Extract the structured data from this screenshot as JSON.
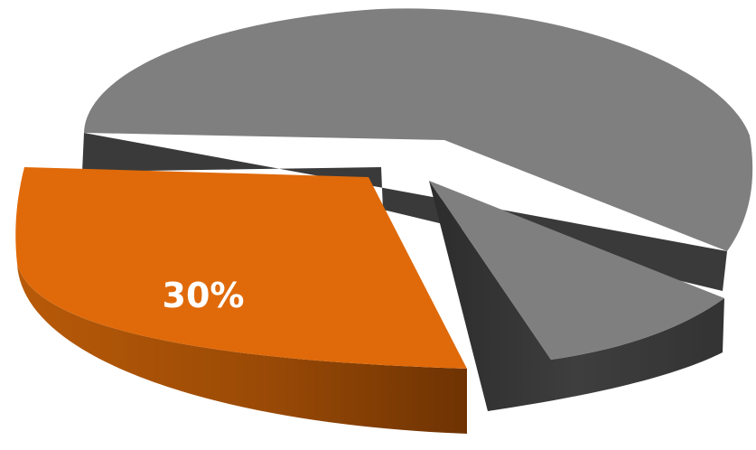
{
  "chart_data": {
    "type": "pie",
    "style": "3d-exploded",
    "slices": [
      {
        "value": 30,
        "label": "30%",
        "color": "#E06A0A",
        "side_color": "#8A3F04",
        "exploded": true
      },
      {
        "value": 20,
        "label": "",
        "color": "#7F7F7F",
        "side_color": "#3A3A3A",
        "exploded": true
      },
      {
        "value": 50,
        "label": "",
        "color": "#7F7F7F",
        "side_color": "#3A3A3A",
        "exploded": false
      }
    ],
    "label_color": "#FFFFFF"
  }
}
